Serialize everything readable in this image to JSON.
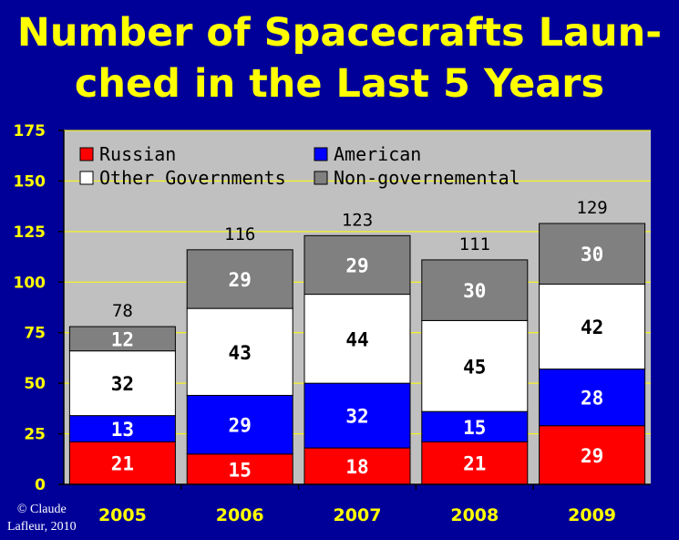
{
  "title_lines": [
    "Number of Spacecrafts Laun-",
    "ched in the Last 5 Years"
  ],
  "copyright_lines": [
    "© Claude",
    "Lafleur, 2010"
  ],
  "colors": {
    "background": "#000099",
    "plot_area": "#c0c0c0",
    "title": "#ffff00",
    "tick_labels": "#ffff00",
    "gridlines": "#ffff00"
  },
  "chart_data": {
    "type": "bar",
    "stacked": true,
    "categories": [
      "2005",
      "2006",
      "2007",
      "2008",
      "2009"
    ],
    "series": [
      {
        "name": "Russian",
        "color": "#ff0000",
        "label_color": "#ffffff",
        "values": [
          21,
          15,
          18,
          21,
          29
        ]
      },
      {
        "name": "American",
        "color": "#0000ff",
        "label_color": "#ffffff",
        "values": [
          13,
          29,
          32,
          15,
          28
        ]
      },
      {
        "name": "Other Governments",
        "color": "#ffffff",
        "label_color": "#000000",
        "values": [
          32,
          43,
          44,
          45,
          42
        ]
      },
      {
        "name": "Non-governemental",
        "color": "#808080",
        "label_color": "#ffffff",
        "values": [
          12,
          29,
          29,
          30,
          30
        ]
      }
    ],
    "totals": [
      78,
      116,
      123,
      111,
      129
    ],
    "title": "Number of Spacecrafts Laun-ched in the Last 5 Years",
    "xlabel": "",
    "ylabel": "",
    "ylim": [
      0,
      175
    ],
    "yticks": [
      0,
      25,
      50,
      75,
      100,
      125,
      150,
      175
    ],
    "grid": true,
    "legend_position": "top-left"
  }
}
